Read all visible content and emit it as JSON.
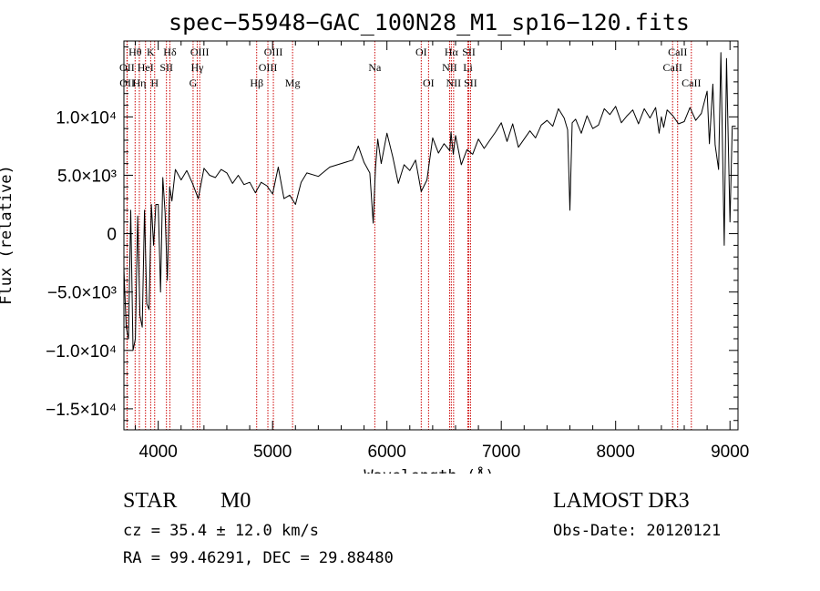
{
  "chart_data": {
    "type": "line",
    "title": "spec−55948−GAC_100N28_M1_sp16−120.fits",
    "xlabel": "Wavelength (Å)",
    "ylabel": "Flux (relative)",
    "xlim": [
      3700,
      9070
    ],
    "ylim": [
      -16800,
      16500
    ],
    "x_ticks": [
      {
        "value": 4000,
        "label": "4000"
      },
      {
        "value": 5000,
        "label": "5000"
      },
      {
        "value": 6000,
        "label": "6000"
      },
      {
        "value": 7000,
        "label": "7000"
      },
      {
        "value": 8000,
        "label": "8000"
      },
      {
        "value": 9000,
        "label": "9000"
      }
    ],
    "y_ticks": [
      {
        "value": 10000,
        "label": "1.0×10⁴"
      },
      {
        "value": 5000,
        "label": "5.0×10³"
      },
      {
        "value": 0,
        "label": "0"
      },
      {
        "value": -5000,
        "label": "−5.0×10³"
      },
      {
        "value": -10000,
        "label": "−1.0×10⁴"
      },
      {
        "value": -15000,
        "label": "−1.5×10⁴"
      }
    ],
    "series": [
      {
        "name": "flux",
        "x": [
          3700,
          3720,
          3740,
          3760,
          3780,
          3800,
          3820,
          3840,
          3860,
          3880,
          3900,
          3920,
          3940,
          3960,
          3980,
          4000,
          4020,
          4040,
          4060,
          4080,
          4100,
          4120,
          4150,
          4200,
          4250,
          4300,
          4350,
          4400,
          4450,
          4500,
          4550,
          4600,
          4650,
          4700,
          4750,
          4800,
          4850,
          4900,
          4950,
          5000,
          5050,
          5100,
          5150,
          5200,
          5250,
          5300,
          5400,
          5500,
          5600,
          5700,
          5750,
          5800,
          5850,
          5880,
          5900,
          5920,
          5950,
          6000,
          6050,
          6100,
          6150,
          6200,
          6250,
          6300,
          6350,
          6400,
          6450,
          6500,
          6550,
          6560,
          6580,
          6600,
          6650,
          6700,
          6750,
          6800,
          6850,
          6900,
          6950,
          7000,
          7050,
          7100,
          7150,
          7200,
          7250,
          7300,
          7350,
          7400,
          7450,
          7500,
          7550,
          7580,
          7600,
          7620,
          7650,
          7700,
          7750,
          7800,
          7850,
          7900,
          7950,
          8000,
          8050,
          8100,
          8150,
          8200,
          8250,
          8300,
          8350,
          8380,
          8400,
          8420,
          8450,
          8500,
          8550,
          8600,
          8650,
          8700,
          8750,
          8800,
          8820,
          8850,
          8870,
          8900,
          8920,
          8950,
          8970,
          9000,
          9020,
          9050
        ],
        "y": [
          -3000,
          -8000,
          -9000,
          2000,
          -10000,
          -9000,
          1500,
          -7000,
          -8000,
          2000,
          -6000,
          -6500,
          2500,
          -1000,
          2500,
          2500,
          -5000,
          4800,
          1800,
          -4000,
          4000,
          2800,
          5500,
          4600,
          5400,
          4300,
          3000,
          5600,
          5000,
          4800,
          5500,
          5200,
          4300,
          5000,
          4200,
          4400,
          3500,
          4400,
          4100,
          3400,
          5700,
          3000,
          3300,
          2500,
          4400,
          5200,
          4900,
          5700,
          6000,
          6300,
          7500,
          6100,
          5200,
          900,
          5600,
          8100,
          6000,
          8600,
          6600,
          4300,
          5900,
          5400,
          6300,
          3600,
          4600,
          8200,
          6900,
          7700,
          7100,
          8700,
          6800,
          8400,
          5900,
          7200,
          6800,
          8100,
          7300,
          8000,
          8700,
          9500,
          7900,
          9400,
          7400,
          8100,
          8800,
          8200,
          9300,
          9700,
          9200,
          10700,
          9900,
          8900,
          2000,
          9500,
          9800,
          8600,
          10100,
          9000,
          9300,
          10700,
          10200,
          10900,
          9500,
          10100,
          10600,
          9400,
          10700,
          9900,
          10800,
          8600,
          10000,
          9100,
          10600,
          10100,
          9400,
          9600,
          10800,
          9700,
          10300,
          12200,
          7700,
          12800,
          7600,
          5500,
          15500,
          -1000,
          15000,
          1000,
          9200,
          9200
        ]
      }
    ],
    "emission_lines": [
      {
        "label": "Hθ",
        "wavelength": 3798,
        "row": 1
      },
      {
        "label": "OII",
        "wavelength": 3727,
        "row": 2
      },
      {
        "label": "OII",
        "wavelength": 3729,
        "row": 3
      },
      {
        "label": "Hη",
        "wavelength": 3835,
        "row": 3
      },
      {
        "label": "HeI",
        "wavelength": 3889,
        "row": 2
      },
      {
        "label": "K",
        "wavelength": 3934,
        "row": 1
      },
      {
        "label": "H",
        "wavelength": 3969,
        "row": 3
      },
      {
        "label": "SII",
        "wavelength": 4072,
        "row": 2
      },
      {
        "label": "Hδ",
        "wavelength": 4102,
        "row": 1
      },
      {
        "label": "G",
        "wavelength": 4305,
        "row": 3
      },
      {
        "label": "Hγ",
        "wavelength": 4341,
        "row": 2
      },
      {
        "label": "OIII",
        "wavelength": 4363,
        "row": 1
      },
      {
        "label": "Hβ",
        "wavelength": 4861,
        "row": 3
      },
      {
        "label": "OIII",
        "wavelength": 4959,
        "row": 2
      },
      {
        "label": "OIII",
        "wavelength": 5007,
        "row": 1
      },
      {
        "label": "Mg",
        "wavelength": 5175,
        "row": 3
      },
      {
        "label": "Na",
        "wavelength": 5894,
        "row": 2
      },
      {
        "label": "OI",
        "wavelength": 6300,
        "row": 1
      },
      {
        "label": "OI",
        "wavelength": 6364,
        "row": 3
      },
      {
        "label": "NII",
        "wavelength": 6548,
        "row": 2
      },
      {
        "label": "Hα",
        "wavelength": 6563,
        "row": 1
      },
      {
        "label": "NII",
        "wavelength": 6583,
        "row": 3
      },
      {
        "label": "SII",
        "wavelength": 6716,
        "row": 1
      },
      {
        "label": "Li",
        "wavelength": 6708,
        "row": 2
      },
      {
        "label": "SII",
        "wavelength": 6731,
        "row": 3
      },
      {
        "label": "CaII",
        "wavelength": 8498,
        "row": 2
      },
      {
        "label": "CaII",
        "wavelength": 8542,
        "row": 1
      },
      {
        "label": "CaII",
        "wavelength": 8662,
        "row": 3
      }
    ]
  },
  "info": {
    "object_class": "STAR",
    "subclass": "M0",
    "survey": "LAMOST DR3",
    "cz": "cz = 35.4 ± 12.0 km/s",
    "obs_date": "Obs-Date: 20120121",
    "coords": "RA =  99.46291, DEC =  29.88480"
  },
  "colors": {
    "line_marker": "#cc0000",
    "spectrum": "#000000"
  }
}
